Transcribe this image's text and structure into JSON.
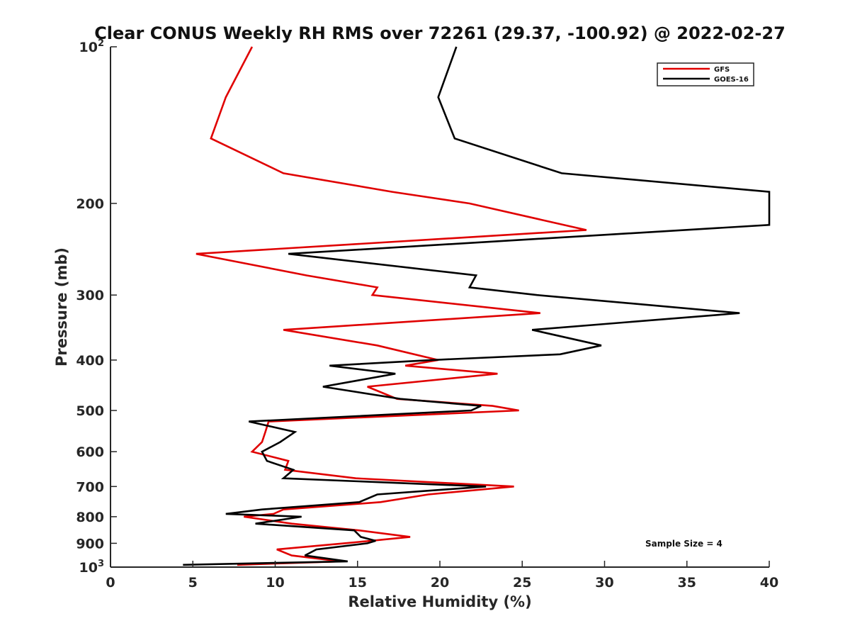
{
  "chart_data": {
    "type": "line",
    "title": "Clear CONUS Weekly RH RMS over 72261 (29.37, -100.92) @ 2022-02-27",
    "xlabel": "Relative Humidity (%)",
    "ylabel": "Pressure (mb)",
    "xlim": [
      0,
      40
    ],
    "ylim": [
      100,
      1000
    ],
    "yscale": "log",
    "y_reversed": true,
    "grid": false,
    "legend_position": "top-right",
    "x_ticks": [
      0,
      5,
      10,
      15,
      20,
      25,
      30,
      35,
      40
    ],
    "y_ticks": [
      {
        "value": 100,
        "label": "10",
        "sup": "2"
      },
      {
        "value": 200,
        "label": "200",
        "sup": ""
      },
      {
        "value": 300,
        "label": "300",
        "sup": ""
      },
      {
        "value": 400,
        "label": "400",
        "sup": ""
      },
      {
        "value": 500,
        "label": "500",
        "sup": ""
      },
      {
        "value": 600,
        "label": "600",
        "sup": ""
      },
      {
        "value": 700,
        "label": "700",
        "sup": ""
      },
      {
        "value": 800,
        "label": "800",
        "sup": ""
      },
      {
        "value": 900,
        "label": "900",
        "sup": ""
      },
      {
        "value": 1000,
        "label": "10",
        "sup": "3"
      }
    ],
    "annotation": "Sample Size = 4",
    "series": [
      {
        "name": "GFS",
        "color": "#e00000",
        "points": [
          [
            8.6,
            100
          ],
          [
            7.0,
            125
          ],
          [
            6.1,
            150
          ],
          [
            10.5,
            175
          ],
          [
            17.1,
            190
          ],
          [
            21.8,
            200
          ],
          [
            28.9,
            225
          ],
          [
            5.2,
            250
          ],
          [
            11.9,
            275
          ],
          [
            16.2,
            290
          ],
          [
            15.9,
            300
          ],
          [
            26.1,
            325
          ],
          [
            10.5,
            350
          ],
          [
            16.2,
            375
          ],
          [
            19.9,
            400
          ],
          [
            17.9,
            410
          ],
          [
            23.5,
            425
          ],
          [
            15.6,
            450
          ],
          [
            17.4,
            475
          ],
          [
            23.2,
            490
          ],
          [
            24.8,
            500
          ],
          [
            9.6,
            525
          ],
          [
            9.4,
            550
          ],
          [
            9.2,
            575
          ],
          [
            8.6,
            600
          ],
          [
            10.8,
            625
          ],
          [
            10.6,
            650
          ],
          [
            14.9,
            675
          ],
          [
            24.5,
            700
          ],
          [
            19.3,
            725
          ],
          [
            16.4,
            750
          ],
          [
            10.5,
            775
          ],
          [
            9.9,
            790
          ],
          [
            8.1,
            800
          ],
          [
            11.0,
            825
          ],
          [
            15.1,
            850
          ],
          [
            18.2,
            875
          ],
          [
            15.8,
            890
          ],
          [
            14.2,
            900
          ],
          [
            10.1,
            925
          ],
          [
            11.0,
            950
          ],
          [
            14.0,
            975
          ],
          [
            7.7,
            990
          ]
        ]
      },
      {
        "name": "GOES-16",
        "color": "#000000",
        "points": [
          [
            21.0,
            100
          ],
          [
            19.9,
            125
          ],
          [
            20.9,
            150
          ],
          [
            27.4,
            175
          ],
          [
            40.0,
            190
          ],
          [
            40.0,
            220
          ],
          [
            10.8,
            250
          ],
          [
            22.2,
            275
          ],
          [
            21.8,
            290
          ],
          [
            25.9,
            300
          ],
          [
            38.2,
            325
          ],
          [
            25.6,
            350
          ],
          [
            29.8,
            375
          ],
          [
            27.3,
            390
          ],
          [
            19.5,
            400
          ],
          [
            13.3,
            410
          ],
          [
            17.3,
            425
          ],
          [
            12.9,
            450
          ],
          [
            17.6,
            475
          ],
          [
            22.5,
            490
          ],
          [
            21.9,
            500
          ],
          [
            8.4,
            525
          ],
          [
            11.2,
            550
          ],
          [
            10.3,
            575
          ],
          [
            9.2,
            600
          ],
          [
            9.5,
            625
          ],
          [
            11.1,
            650
          ],
          [
            10.5,
            675
          ],
          [
            22.8,
            700
          ],
          [
            16.2,
            725
          ],
          [
            15.1,
            750
          ],
          [
            9.2,
            775
          ],
          [
            7.0,
            790
          ],
          [
            11.6,
            800
          ],
          [
            8.8,
            825
          ],
          [
            14.8,
            850
          ],
          [
            15.2,
            875
          ],
          [
            16.1,
            890
          ],
          [
            15.6,
            900
          ],
          [
            12.5,
            925
          ],
          [
            11.8,
            950
          ],
          [
            14.4,
            975
          ],
          [
            4.4,
            990
          ]
        ]
      }
    ]
  }
}
